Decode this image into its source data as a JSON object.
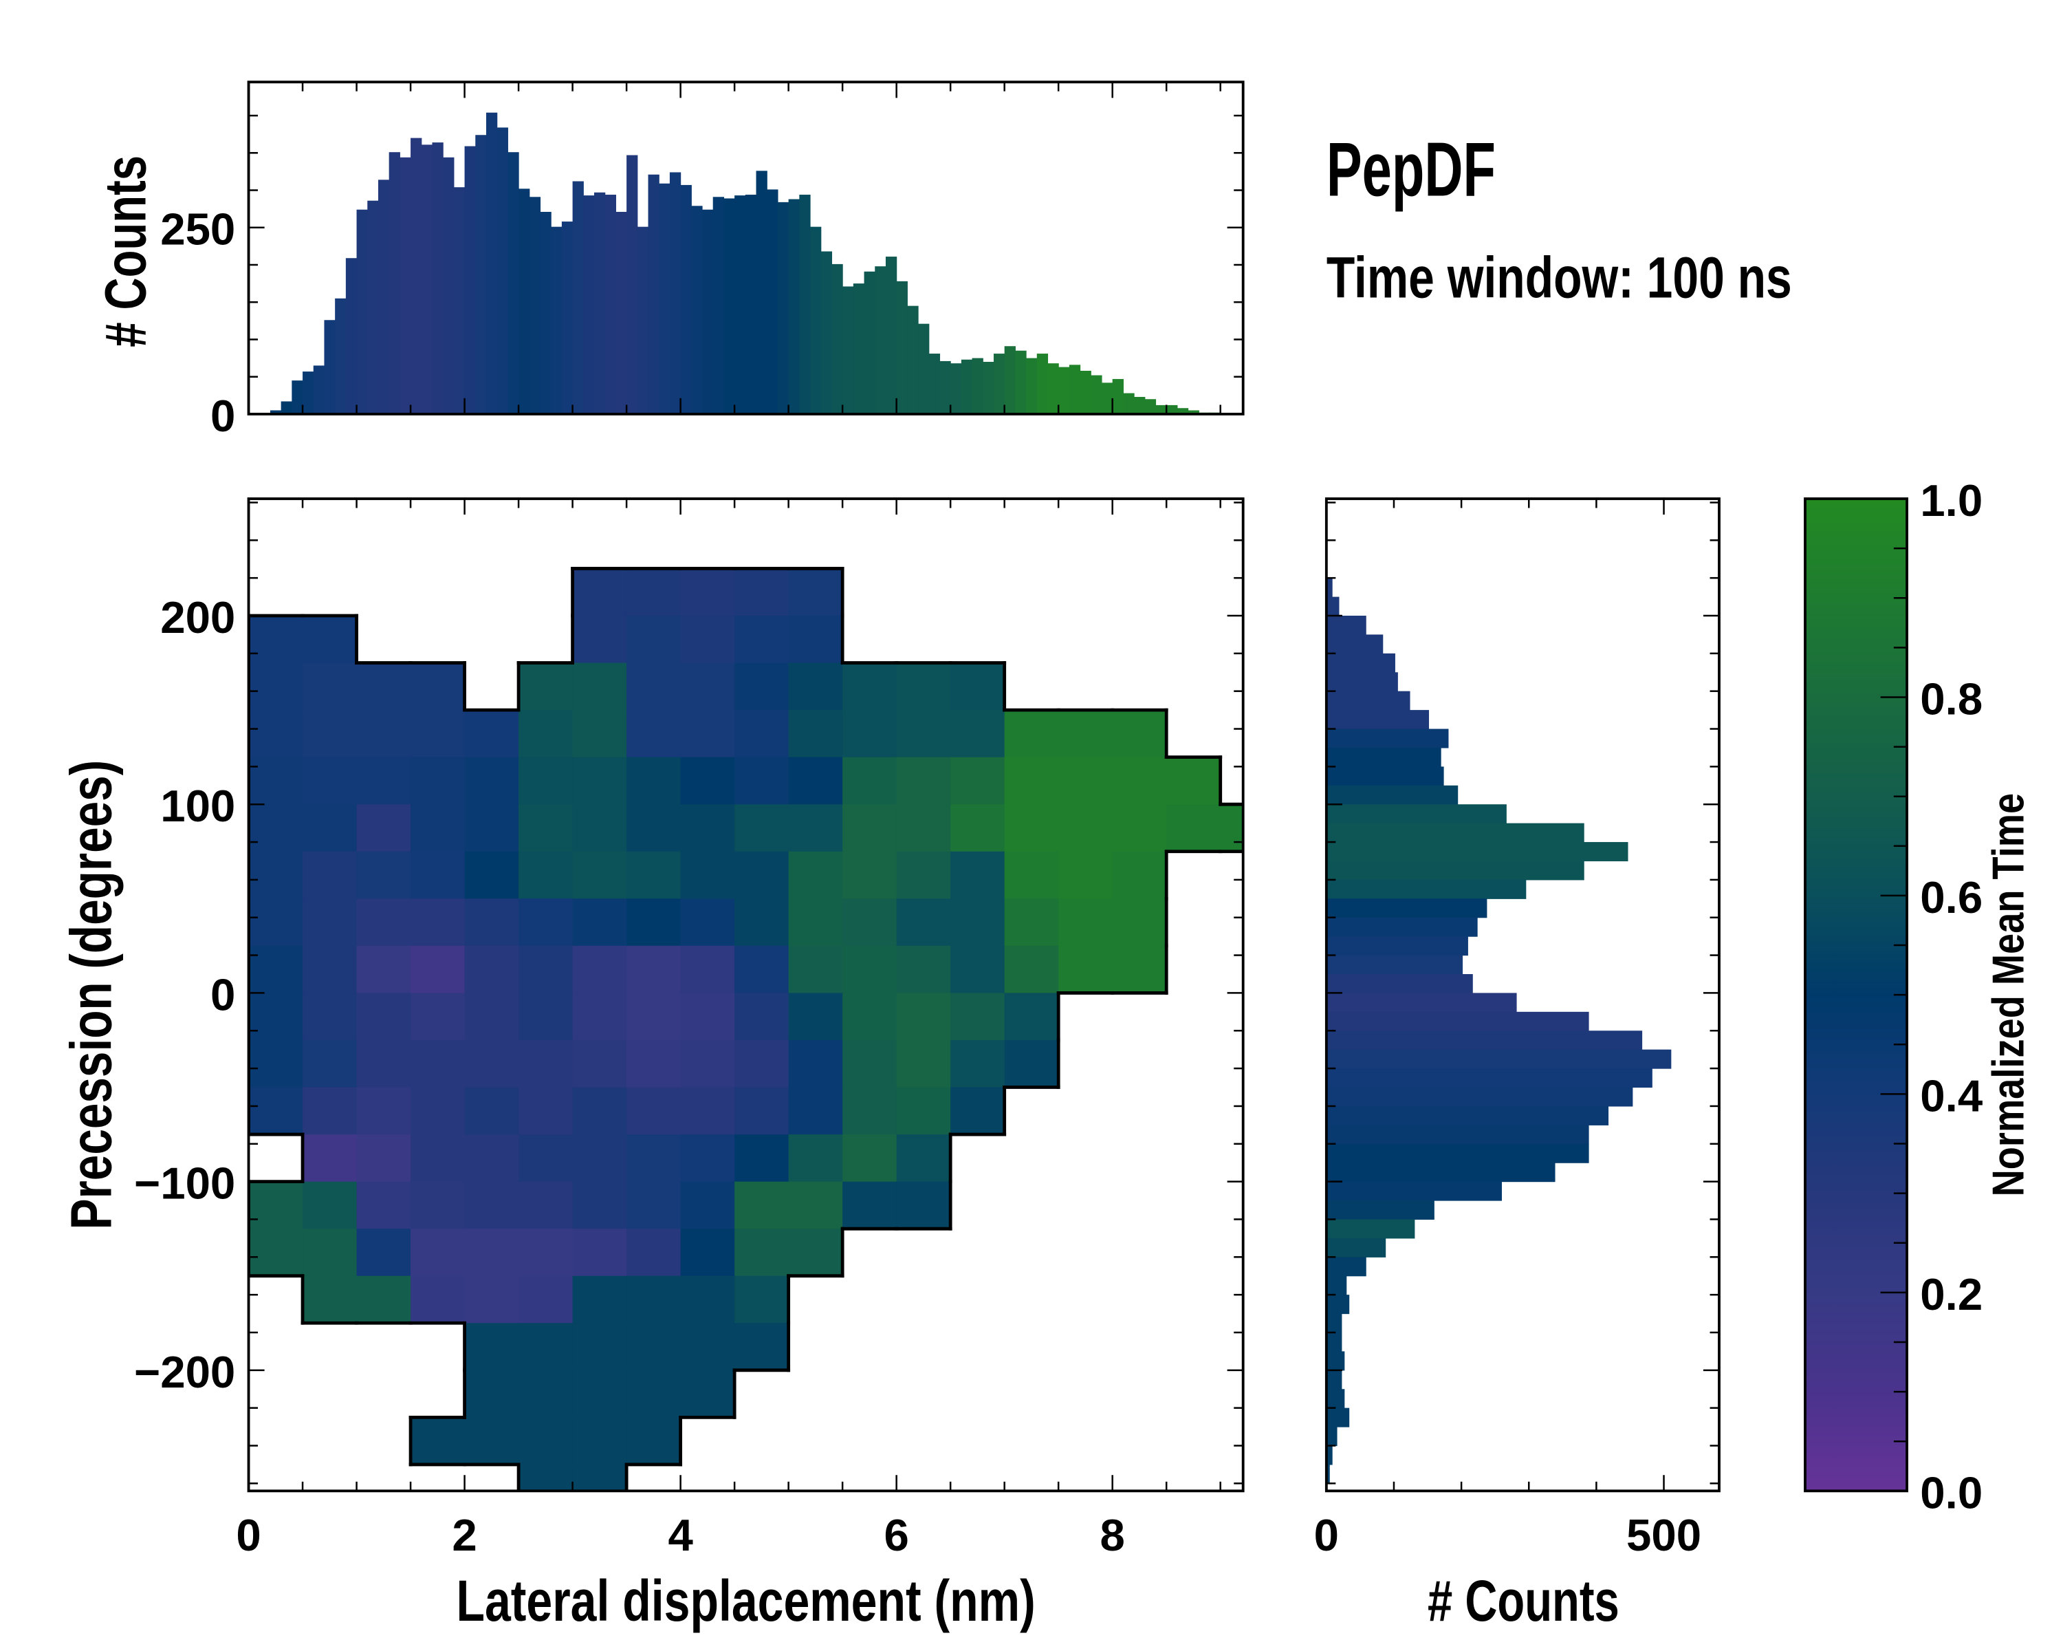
{
  "chart_data": [
    {
      "id": "joint",
      "type": "heatmap",
      "xlabel": "Lateral displacement (nm)",
      "ylabel": "Precession (degrees)",
      "xlim": [
        0,
        9.21
      ],
      "ylim": [
        -264,
        262
      ],
      "xticks": [
        0,
        2,
        4,
        6,
        8
      ],
      "xtick_labels": [
        "0",
        "2",
        "4",
        "6",
        "8"
      ],
      "yticks": [
        200,
        100,
        0,
        -100,
        -200
      ],
      "ytick_labels": [
        "200",
        "100",
        "0",
        "−100",
        "−200"
      ],
      "x_bin_width": 0.5,
      "y_bin_width": 25,
      "x_bin_start": 0,
      "y_bin_top": 250,
      "value_label": "Normalized Mean Time",
      "grid": [
        [
          null,
          null,
          null,
          null,
          null,
          null,
          null,
          null,
          null,
          null,
          null,
          null,
          null,
          null,
          null,
          null,
          null,
          null,
          null
        ],
        [
          null,
          null,
          null,
          null,
          null,
          null,
          0.35,
          0.35,
          0.33,
          0.35,
          0.38,
          null,
          null,
          null,
          null,
          null,
          null,
          null,
          null
        ],
        [
          0.4,
          0.4,
          null,
          null,
          null,
          null,
          0.35,
          0.38,
          0.35,
          0.4,
          0.42,
          null,
          null,
          null,
          null,
          null,
          null,
          null,
          null
        ],
        [
          0.4,
          0.38,
          0.38,
          0.38,
          null,
          0.65,
          0.65,
          0.38,
          0.38,
          0.45,
          0.55,
          0.6,
          0.62,
          0.6,
          null,
          null,
          null,
          null,
          null
        ],
        [
          0.4,
          0.38,
          0.38,
          0.38,
          0.4,
          0.62,
          0.65,
          0.38,
          0.38,
          0.42,
          0.58,
          0.6,
          0.62,
          0.62,
          0.9,
          0.9,
          0.9,
          null,
          null
        ],
        [
          0.42,
          0.4,
          0.4,
          0.42,
          0.45,
          0.6,
          0.6,
          0.55,
          0.5,
          0.45,
          0.5,
          0.72,
          0.75,
          0.8,
          0.92,
          0.92,
          0.92,
          0.92,
          null
        ],
        [
          0.42,
          0.42,
          0.3,
          0.42,
          0.45,
          0.62,
          0.6,
          0.55,
          0.55,
          0.6,
          0.6,
          0.75,
          0.75,
          0.85,
          0.92,
          0.92,
          0.92,
          0.9,
          0.9
        ],
        [
          0.42,
          0.35,
          0.38,
          0.4,
          0.5,
          0.6,
          0.62,
          0.6,
          0.55,
          0.55,
          0.72,
          0.75,
          0.7,
          0.6,
          0.9,
          0.92,
          0.9,
          null,
          null
        ],
        [
          0.42,
          0.35,
          0.3,
          0.3,
          0.35,
          0.4,
          0.45,
          0.5,
          0.45,
          0.55,
          0.72,
          0.7,
          0.6,
          0.6,
          0.85,
          0.9,
          0.9,
          null,
          null
        ],
        [
          0.45,
          0.35,
          0.2,
          0.15,
          0.3,
          0.35,
          0.25,
          0.2,
          0.25,
          0.4,
          0.7,
          0.72,
          0.7,
          0.6,
          0.8,
          0.9,
          0.9,
          null,
          null
        ],
        [
          0.45,
          0.35,
          0.3,
          0.25,
          0.3,
          0.35,
          0.25,
          0.2,
          0.22,
          0.35,
          0.55,
          0.72,
          0.75,
          0.7,
          0.6,
          null,
          null,
          null,
          null
        ],
        [
          0.45,
          0.38,
          0.3,
          0.3,
          0.3,
          0.3,
          0.28,
          0.22,
          0.25,
          0.3,
          0.45,
          0.7,
          0.75,
          0.6,
          0.55,
          null,
          null,
          null,
          null
        ],
        [
          0.42,
          0.3,
          0.25,
          0.3,
          0.35,
          0.3,
          0.35,
          0.3,
          0.3,
          0.35,
          0.45,
          0.7,
          0.72,
          0.55,
          null,
          null,
          null,
          null,
          null
        ],
        [
          null,
          0.15,
          0.18,
          0.3,
          0.3,
          0.35,
          0.35,
          0.38,
          0.4,
          0.5,
          0.65,
          0.75,
          0.6,
          null,
          null,
          null,
          null,
          null,
          null
        ],
        [
          0.7,
          0.65,
          0.25,
          0.28,
          0.3,
          0.3,
          0.35,
          0.38,
          0.45,
          0.75,
          0.75,
          0.55,
          0.55,
          null,
          null,
          null,
          null,
          null,
          null
        ],
        [
          0.7,
          0.7,
          0.4,
          0.2,
          0.2,
          0.2,
          0.22,
          0.3,
          0.5,
          0.7,
          0.7,
          null,
          null,
          null,
          null,
          null,
          null,
          null,
          null
        ],
        [
          null,
          0.7,
          0.7,
          0.22,
          0.2,
          0.22,
          0.55,
          0.55,
          0.55,
          0.6,
          null,
          null,
          null,
          null,
          null,
          null,
          null,
          null,
          null
        ],
        [
          null,
          null,
          null,
          null,
          0.55,
          0.55,
          0.55,
          0.55,
          0.55,
          0.55,
          null,
          null,
          null,
          null,
          null,
          null,
          null,
          null,
          null
        ],
        [
          null,
          null,
          null,
          null,
          0.55,
          0.55,
          0.55,
          0.55,
          0.55,
          null,
          null,
          null,
          null,
          null,
          null,
          null,
          null,
          null,
          null
        ],
        [
          null,
          null,
          null,
          0.55,
          0.55,
          0.55,
          0.55,
          0.55,
          null,
          null,
          null,
          null,
          null,
          null,
          null,
          null,
          null,
          null,
          null
        ],
        [
          null,
          null,
          null,
          null,
          null,
          0.55,
          0.55,
          null,
          null,
          null,
          null,
          null,
          null,
          null,
          null,
          null,
          null,
          null,
          null
        ]
      ]
    },
    {
      "id": "top_hist",
      "type": "bar",
      "xlabel": "",
      "ylabel": "# Counts",
      "xlim": [
        0,
        9.21
      ],
      "ylim": [
        0,
        445
      ],
      "yticks": [
        0,
        250
      ],
      "ytick_labels": [
        "0",
        "250"
      ],
      "bin_width": 0.1,
      "x": [
        0.25,
        0.35,
        0.45,
        0.55,
        0.65,
        0.75,
        0.85,
        0.95,
        1.05,
        1.15,
        1.25,
        1.35,
        1.45,
        1.55,
        1.65,
        1.75,
        1.85,
        1.95,
        2.05,
        2.15,
        2.25,
        2.35,
        2.45,
        2.55,
        2.65,
        2.75,
        2.85,
        2.95,
        3.05,
        3.15,
        3.25,
        3.35,
        3.45,
        3.55,
        3.65,
        3.75,
        3.85,
        3.95,
        4.05,
        4.15,
        4.25,
        4.35,
        4.45,
        4.55,
        4.65,
        4.75,
        4.85,
        4.95,
        5.05,
        5.15,
        5.25,
        5.35,
        5.45,
        5.55,
        5.65,
        5.75,
        5.85,
        5.95,
        6.05,
        6.15,
        6.25,
        6.35,
        6.45,
        6.55,
        6.65,
        6.75,
        6.85,
        6.95,
        7.05,
        7.15,
        7.25,
        7.35,
        7.45,
        7.55,
        7.65,
        7.75,
        7.85,
        7.95,
        8.05,
        8.15,
        8.25,
        8.35,
        8.45,
        8.55,
        8.65,
        8.75,
        8.85,
        8.95
      ],
      "values": [
        5,
        17,
        45,
        57,
        65,
        126,
        155,
        209,
        274,
        286,
        314,
        351,
        344,
        370,
        361,
        364,
        344,
        304,
        359,
        374,
        404,
        384,
        351,
        302,
        291,
        271,
        251,
        258,
        312,
        293,
        297,
        294,
        271,
        347,
        251,
        321,
        309,
        324,
        307,
        279,
        274,
        291,
        289,
        293,
        294,
        326,
        301,
        284,
        288,
        294,
        251,
        218,
        201,
        171,
        175,
        191,
        198,
        211,
        178,
        145,
        121,
        81,
        71,
        68,
        73,
        75,
        70,
        81,
        91,
        85,
        75,
        81,
        68,
        63,
        66,
        58,
        52,
        42,
        47,
        28,
        23,
        20,
        12,
        12,
        8,
        5,
        2,
        2
      ],
      "mean_time": [
        0.5,
        0.5,
        0.48,
        0.45,
        0.42,
        0.4,
        0.38,
        0.36,
        0.35,
        0.34,
        0.33,
        0.32,
        0.3,
        0.3,
        0.3,
        0.32,
        0.33,
        0.34,
        0.36,
        0.38,
        0.4,
        0.42,
        0.45,
        0.47,
        0.46,
        0.45,
        0.43,
        0.4,
        0.38,
        0.36,
        0.35,
        0.33,
        0.32,
        0.33,
        0.35,
        0.37,
        0.39,
        0.41,
        0.43,
        0.45,
        0.47,
        0.48,
        0.5,
        0.5,
        0.5,
        0.5,
        0.5,
        0.52,
        0.55,
        0.58,
        0.6,
        0.62,
        0.64,
        0.65,
        0.66,
        0.66,
        0.67,
        0.67,
        0.68,
        0.68,
        0.68,
        0.68,
        0.69,
        0.7,
        0.72,
        0.74,
        0.76,
        0.78,
        0.82,
        0.86,
        0.9,
        0.94,
        0.96,
        0.96,
        0.95,
        0.95,
        0.94,
        0.94,
        0.94,
        0.93,
        0.93,
        0.93,
        0.93,
        0.93,
        0.93,
        0.93,
        0.93,
        0.93
      ]
    },
    {
      "id": "right_hist",
      "type": "bar",
      "orientation": "horizontal",
      "xlabel": "# Counts",
      "ylabel": "",
      "xlim": [
        0,
        582
      ],
      "ylim": [
        -264,
        262
      ],
      "xticks": [
        0,
        500
      ],
      "xtick_labels": [
        "0",
        "500"
      ],
      "bin_width": 10,
      "y": [
        215,
        205,
        195,
        185,
        175,
        165,
        155,
        145,
        135,
        125,
        115,
        105,
        95,
        85,
        75,
        65,
        55,
        45,
        35,
        25,
        15,
        5,
        -5,
        -15,
        -25,
        -35,
        -45,
        -55,
        -65,
        -75,
        -85,
        -95,
        -105,
        -115,
        -125,
        -135,
        -145,
        -155,
        -165,
        -175,
        -185,
        -195,
        -205,
        -215,
        -225,
        -235,
        -245,
        -255
      ],
      "values": [
        9,
        19,
        59,
        84,
        102,
        106,
        124,
        152,
        181,
        170,
        174,
        195,
        267,
        382,
        447,
        382,
        296,
        238,
        224,
        210,
        202,
        217,
        282,
        389,
        468,
        511,
        483,
        454,
        418,
        389,
        389,
        339,
        260,
        160,
        131,
        88,
        59,
        30,
        34,
        23,
        23,
        27,
        23,
        27,
        34,
        16,
        9,
        5
      ],
      "mean_time": [
        0.35,
        0.35,
        0.35,
        0.35,
        0.35,
        0.35,
        0.35,
        0.35,
        0.45,
        0.5,
        0.5,
        0.55,
        0.62,
        0.64,
        0.64,
        0.63,
        0.6,
        0.5,
        0.45,
        0.42,
        0.38,
        0.33,
        0.3,
        0.32,
        0.35,
        0.38,
        0.4,
        0.42,
        0.44,
        0.46,
        0.5,
        0.5,
        0.48,
        0.52,
        0.62,
        0.58,
        0.52,
        0.52,
        0.52,
        0.52,
        0.52,
        0.52,
        0.52,
        0.52,
        0.52,
        0.52,
        0.52,
        0.52
      ]
    },
    {
      "id": "colorbar",
      "type": "colorbar",
      "label": "Normalized Mean Time",
      "range": [
        0,
        1
      ],
      "ticks": [
        0.0,
        0.2,
        0.4,
        0.6,
        0.8,
        1.0
      ],
      "tick_labels": [
        "0.0",
        "0.2",
        "0.4",
        "0.6",
        "0.8",
        "1.0"
      ],
      "stops": [
        {
          "v": 0.0,
          "color": "#663399"
        },
        {
          "v": 0.1,
          "color": "#4a338c"
        },
        {
          "v": 0.2,
          "color": "#363a85"
        },
        {
          "v": 0.3,
          "color": "#27387c"
        },
        {
          "v": 0.4,
          "color": "#133a78"
        },
        {
          "v": 0.5,
          "color": "#003a6b"
        },
        {
          "v": 0.6,
          "color": "#0a4f5c"
        },
        {
          "v": 0.7,
          "color": "#135e4c"
        },
        {
          "v": 0.8,
          "color": "#1a6c3e"
        },
        {
          "v": 0.9,
          "color": "#1e7c30"
        },
        {
          "v": 1.0,
          "color": "#238a22"
        }
      ]
    }
  ],
  "title": "PepDF",
  "subtitle": "Time window: 100 ns"
}
